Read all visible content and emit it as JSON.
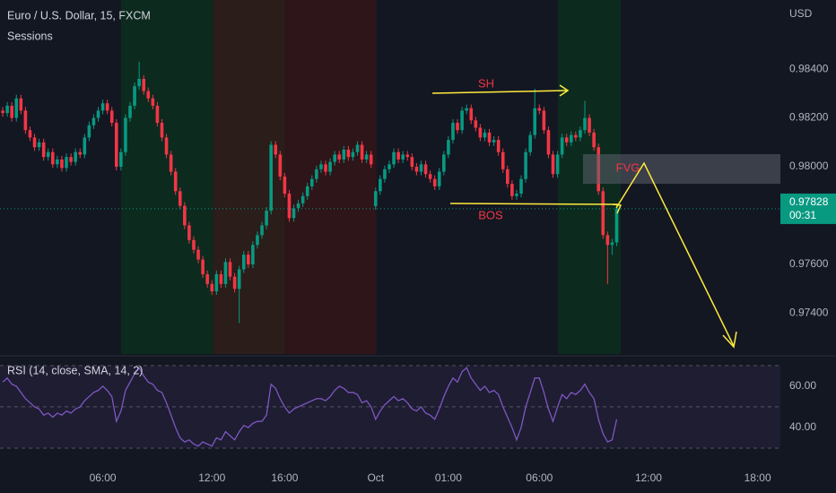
{
  "chart_data": [
    {
      "type": "candlestick",
      "title": "Euro / U.S. Dollar, 15, FXCM",
      "subtitle": "Sessions",
      "currency": "USD",
      "countdown": "00:31",
      "annotations": {
        "swing_high": "SH",
        "break": "BOS",
        "gap": "FVG"
      },
      "up_color": "#089981",
      "down_color": "#f23645",
      "xlim": [
        -0.6,
        171
      ],
      "ylim": [
        0.97233,
        0.98683
      ],
      "yticks": [
        {
          "value": 0.984,
          "label": "0.98400"
        },
        {
          "value": 0.982,
          "label": "0.98200"
        },
        {
          "value": 0.98,
          "label": "0.98000"
        },
        {
          "value": 0.976,
          "label": "0.97600"
        },
        {
          "value": 0.974,
          "label": "0.97400"
        }
      ],
      "sessions": [
        {
          "start": 26.0,
          "end": 46.2,
          "color": "#0d2a1f"
        },
        {
          "start": 46.2,
          "end": 62.1,
          "color": "#2a1d1a"
        },
        {
          "start": 62.1,
          "end": 82.2,
          "color": "#2d1519"
        },
        {
          "start": 122.1,
          "end": 135.9,
          "color": "#0d2a1f"
        }
      ],
      "candles": [
        [
          0.9823,
          0.98245,
          0.98205,
          0.9822
        ],
        [
          0.9822,
          0.98265,
          0.98205,
          0.9825
        ],
        [
          0.9825,
          0.98265,
          0.98185,
          0.982
        ],
        [
          0.982,
          0.98295,
          0.98185,
          0.9828
        ],
        [
          0.9828,
          0.98295,
          0.98215,
          0.9823
        ],
        [
          0.9823,
          0.98245,
          0.98135,
          0.9815
        ],
        [
          0.9815,
          0.98165,
          0.98105,
          0.9812
        ],
        [
          0.9812,
          0.98135,
          0.98065,
          0.9808
        ],
        [
          0.9808,
          0.98115,
          0.98065,
          0.981
        ],
        [
          0.981,
          0.98115,
          0.98025,
          0.9804
        ],
        [
          0.9804,
          0.98075,
          0.98025,
          0.9806
        ],
        [
          0.9806,
          0.98075,
          0.97995,
          0.9801
        ],
        [
          0.9801,
          0.98045,
          0.97995,
          0.9803
        ],
        [
          0.9803,
          0.98045,
          0.9798,
          0.97995
        ],
        [
          0.97995,
          0.98055,
          0.9798,
          0.9804
        ],
        [
          0.9804,
          0.98055,
          0.98005,
          0.9802
        ],
        [
          0.9802,
          0.98075,
          0.98005,
          0.9806
        ],
        [
          0.9806,
          0.98075,
          0.98035,
          0.9805
        ],
        [
          0.9805,
          0.98135,
          0.98035,
          0.9812
        ],
        [
          0.9812,
          0.98185,
          0.98105,
          0.9817
        ],
        [
          0.9817,
          0.98215,
          0.98155,
          0.982
        ],
        [
          0.982,
          0.98245,
          0.98185,
          0.9823
        ],
        [
          0.9823,
          0.98275,
          0.98215,
          0.9826
        ],
        [
          0.9826,
          0.98275,
          0.98215,
          0.9823
        ],
        [
          0.9823,
          0.98245,
          0.98165,
          0.9818
        ],
        [
          0.9818,
          0.98195,
          0.97985,
          0.98
        ],
        [
          0.98,
          0.98075,
          0.97985,
          0.9806
        ],
        [
          0.9806,
          0.98215,
          0.98045,
          0.982
        ],
        [
          0.982,
          0.98265,
          0.98185,
          0.9825
        ],
        [
          0.9825,
          0.98345,
          0.98235,
          0.9833
        ],
        [
          0.9833,
          0.9843,
          0.98315,
          0.9836
        ],
        [
          0.9836,
          0.98375,
          0.98295,
          0.9831
        ],
        [
          0.9831,
          0.98325,
          0.98265,
          0.9828
        ],
        [
          0.9828,
          0.98295,
          0.98235,
          0.9825
        ],
        [
          0.9825,
          0.98265,
          0.98165,
          0.9818
        ],
        [
          0.9818,
          0.98195,
          0.98105,
          0.9812
        ],
        [
          0.9812,
          0.98135,
          0.98035,
          0.9805
        ],
        [
          0.9805,
          0.98065,
          0.97965,
          0.9798
        ],
        [
          0.9798,
          0.97995,
          0.97885,
          0.979
        ],
        [
          0.979,
          0.97915,
          0.97825,
          0.9784
        ],
        [
          0.9784,
          0.97855,
          0.97745,
          0.9776
        ],
        [
          0.9776,
          0.97775,
          0.97685,
          0.977
        ],
        [
          0.977,
          0.97715,
          0.97645,
          0.9766
        ],
        [
          0.9766,
          0.97675,
          0.97605,
          0.9762
        ],
        [
          0.9762,
          0.97635,
          0.97545,
          0.9756
        ],
        [
          0.9756,
          0.97575,
          0.97505,
          0.9752
        ],
        [
          0.9752,
          0.97535,
          0.97475,
          0.9749
        ],
        [
          0.9749,
          0.97575,
          0.97475,
          0.9756
        ],
        [
          0.9756,
          0.97575,
          0.97505,
          0.9752
        ],
        [
          0.9752,
          0.97625,
          0.97505,
          0.9761
        ],
        [
          0.9761,
          0.97625,
          0.97535,
          0.9755
        ],
        [
          0.9755,
          0.97565,
          0.97485,
          0.975
        ],
        [
          0.975,
          0.97595,
          0.9736,
          0.9758
        ],
        [
          0.9758,
          0.97655,
          0.97565,
          0.9764
        ],
        [
          0.9764,
          0.97655,
          0.97585,
          0.976
        ],
        [
          0.976,
          0.97695,
          0.97585,
          0.9768
        ],
        [
          0.9768,
          0.97735,
          0.97665,
          0.9772
        ],
        [
          0.9772,
          0.97775,
          0.97705,
          0.9776
        ],
        [
          0.9776,
          0.97835,
          0.97745,
          0.9782
        ],
        [
          0.9782,
          0.98105,
          0.97805,
          0.9809
        ],
        [
          0.9809,
          0.98105,
          0.98035,
          0.9805
        ],
        [
          0.9805,
          0.98065,
          0.97945,
          0.9796
        ],
        [
          0.9796,
          0.97975,
          0.97875,
          0.9789
        ],
        [
          0.9789,
          0.97905,
          0.97775,
          0.9779
        ],
        [
          0.9779,
          0.97845,
          0.97775,
          0.9783
        ],
        [
          0.9783,
          0.97865,
          0.97815,
          0.9785
        ],
        [
          0.9785,
          0.97895,
          0.97835,
          0.9788
        ],
        [
          0.9788,
          0.97935,
          0.97865,
          0.9792
        ],
        [
          0.9792,
          0.97965,
          0.97905,
          0.9795
        ],
        [
          0.9795,
          0.98005,
          0.97935,
          0.9799
        ],
        [
          0.9799,
          0.98025,
          0.97975,
          0.9801
        ],
        [
          0.9801,
          0.98025,
          0.97965,
          0.9798
        ],
        [
          0.9798,
          0.98035,
          0.97965,
          0.9802
        ],
        [
          0.9802,
          0.98065,
          0.98005,
          0.9805
        ],
        [
          0.9805,
          0.98065,
          0.98015,
          0.9803
        ],
        [
          0.9803,
          0.98085,
          0.98015,
          0.9807
        ],
        [
          0.9807,
          0.98085,
          0.98025,
          0.9804
        ],
        [
          0.9804,
          0.98075,
          0.98025,
          0.9806
        ],
        [
          0.9806,
          0.98105,
          0.98045,
          0.9809
        ],
        [
          0.9809,
          0.98105,
          0.98015,
          0.9803
        ],
        [
          0.9803,
          0.98065,
          0.98015,
          0.9805
        ],
        [
          0.9805,
          0.98065,
          0.97995,
          0.9801
        ],
        [
          0.97839,
          0.97915,
          0.97824,
          0.979
        ],
        [
          0.979,
          0.97965,
          0.97885,
          0.9795
        ],
        [
          0.9795,
          0.98005,
          0.97935,
          0.9799
        ],
        [
          0.9799,
          0.98025,
          0.97975,
          0.9801
        ],
        [
          0.9801,
          0.98075,
          0.97995,
          0.9806
        ],
        [
          0.9806,
          0.98075,
          0.98015,
          0.9803
        ],
        [
          0.9803,
          0.98065,
          0.98015,
          0.9805
        ],
        [
          0.9805,
          0.98065,
          0.98025,
          0.9804
        ],
        [
          0.9804,
          0.98055,
          0.97985,
          0.98
        ],
        [
          0.98,
          0.98015,
          0.97965,
          0.9798
        ],
        [
          0.9798,
          0.98025,
          0.97965,
          0.9801
        ],
        [
          0.9801,
          0.98025,
          0.97955,
          0.9797
        ],
        [
          0.9797,
          0.97985,
          0.97935,
          0.9795
        ],
        [
          0.9795,
          0.97965,
          0.97905,
          0.9792
        ],
        [
          0.9792,
          0.97995,
          0.97905,
          0.9798
        ],
        [
          0.9798,
          0.98065,
          0.97965,
          0.9805
        ],
        [
          0.9805,
          0.98125,
          0.98035,
          0.9811
        ],
        [
          0.9811,
          0.98195,
          0.98095,
          0.9818
        ],
        [
          0.9818,
          0.98195,
          0.98135,
          0.9815
        ],
        [
          0.9815,
          0.98245,
          0.98135,
          0.9823
        ],
        [
          0.9823,
          0.98255,
          0.98215,
          0.9824
        ],
        [
          0.9824,
          0.98255,
          0.98175,
          0.9819
        ],
        [
          0.9819,
          0.98205,
          0.98145,
          0.9816
        ],
        [
          0.9816,
          0.98175,
          0.98105,
          0.9812
        ],
        [
          0.9812,
          0.98155,
          0.98105,
          0.9814
        ],
        [
          0.9814,
          0.98155,
          0.98085,
          0.981
        ],
        [
          0.981,
          0.98125,
          0.98085,
          0.9811
        ],
        [
          0.9811,
          0.98125,
          0.98045,
          0.9806
        ],
        [
          0.9806,
          0.98075,
          0.97975,
          0.9799
        ],
        [
          0.9799,
          0.98005,
          0.97915,
          0.9793
        ],
        [
          0.9793,
          0.97945,
          0.97865,
          0.9788
        ],
        [
          0.9788,
          0.97905,
          0.97865,
          0.9789
        ],
        [
          0.9789,
          0.97965,
          0.97875,
          0.9795
        ],
        [
          0.9795,
          0.98075,
          0.97935,
          0.9806
        ],
        [
          0.9806,
          0.98145,
          0.98045,
          0.9813
        ],
        [
          0.9813,
          0.9832,
          0.98115,
          0.9824
        ],
        [
          0.9824,
          0.98255,
          0.98215,
          0.9823
        ],
        [
          0.9823,
          0.98245,
          0.98135,
          0.9815
        ],
        [
          0.9815,
          0.98165,
          0.98035,
          0.9805
        ],
        [
          0.9805,
          0.98065,
          0.97955,
          0.9797
        ],
        [
          0.9797,
          0.98065,
          0.97955,
          0.9805
        ],
        [
          0.9805,
          0.98135,
          0.98035,
          0.9812
        ],
        [
          0.9812,
          0.98135,
          0.98085,
          0.981
        ],
        [
          0.981,
          0.98145,
          0.98085,
          0.9813
        ],
        [
          0.9813,
          0.98145,
          0.98105,
          0.9812
        ],
        [
          0.9812,
          0.98165,
          0.98105,
          0.9815
        ],
        [
          0.9815,
          0.9827,
          0.98135,
          0.982
        ],
        [
          0.982,
          0.98215,
          0.98125,
          0.9814
        ],
        [
          0.9814,
          0.98155,
          0.98065,
          0.9808
        ],
        [
          0.9808,
          0.98095,
          0.97885,
          0.979
        ],
        [
          0.979,
          0.97915,
          0.97705,
          0.9772
        ],
        [
          0.9772,
          0.97735,
          0.9752,
          0.9768
        ],
        [
          0.9768,
          0.97705,
          0.9764,
          0.9769
        ],
        [
          0.9769,
          0.97843,
          0.97675,
          0.97828
        ]
      ]
    },
    {
      "type": "line",
      "title": "RSI (14, close, SMA, 14, 2)",
      "color": "#7e57c2",
      "xlim": [
        -0.6,
        171
      ],
      "ylim": [
        21.3,
        74.3
      ],
      "yticks": [
        {
          "value": 60,
          "label": "60.00"
        },
        {
          "value": 40,
          "label": "40.00"
        }
      ],
      "levels": [
        70,
        50,
        30
      ],
      "xticks": [
        {
          "value": 22,
          "label": "06:00"
        },
        {
          "value": 46,
          "label": "12:00"
        },
        {
          "value": 62,
          "label": "16:00"
        },
        {
          "value": 82,
          "label": "Oct"
        },
        {
          "value": 98,
          "label": "01:00"
        },
        {
          "value": 118,
          "label": "06:00"
        },
        {
          "value": 142,
          "label": "12:00"
        },
        {
          "value": 166,
          "label": "18:00"
        }
      ],
      "values": [
        62,
        64,
        61,
        60,
        57,
        54,
        52,
        50,
        49,
        46,
        47,
        45,
        47,
        46,
        48,
        47,
        49,
        50,
        53,
        55,
        57,
        58,
        60,
        58,
        55,
        43,
        48,
        58,
        62,
        66,
        69,
        65,
        62,
        61,
        58,
        57,
        52,
        46,
        40,
        35,
        33,
        34,
        32,
        31,
        33,
        32,
        31,
        35,
        34,
        38,
        36,
        34,
        38,
        41,
        40,
        42,
        43,
        43,
        46,
        61,
        59,
        54,
        50,
        47,
        49,
        50,
        51,
        52,
        53,
        54,
        54,
        53,
        55,
        58,
        60,
        59,
        57,
        57,
        56,
        52,
        53,
        50,
        44,
        48,
        51,
        53,
        55,
        53,
        54,
        52,
        49,
        48,
        50,
        47,
        46,
        44,
        49,
        55,
        60,
        64,
        62,
        67,
        69,
        64,
        61,
        58,
        60,
        57,
        58,
        56,
        50,
        45,
        40,
        34,
        40,
        50,
        57,
        64,
        64,
        57,
        49,
        43,
        50,
        56,
        54,
        57,
        56,
        58,
        61,
        57,
        54,
        44,
        37,
        33,
        34,
        44
      ]
    }
  ]
}
